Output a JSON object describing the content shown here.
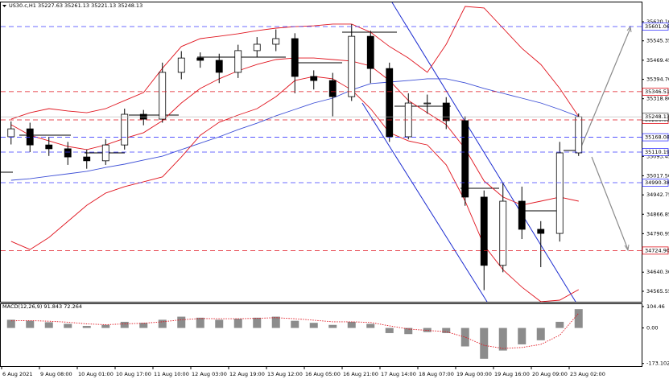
{
  "chart_data": [
    {
      "type": "candlestick",
      "title": "US30.c,H1  35227.63 35261.13 35221.13 35248.13",
      "categories": [
        "6 Aug 2021",
        null,
        "9 Aug 08:00",
        null,
        "10 Aug 01:00",
        null,
        "10 Aug 17:00",
        null,
        "11 Aug 10:00",
        null,
        "12 Aug 03:00",
        null,
        "12 Aug 19:00",
        null,
        "13 Aug 12:00",
        null,
        "16 Aug 05:00",
        null,
        "16 Aug 21:00",
        null,
        "17 Aug 14:00",
        null,
        "18 Aug 07:00",
        null,
        "19 Aug 00:00",
        null,
        "19 Aug 16:00",
        null,
        "20 Aug 09:00",
        null,
        "23 Aug 02:00"
      ],
      "open": [
        35170,
        35201,
        35138,
        35123,
        35091,
        35076,
        35138,
        35258,
        35239,
        35422,
        35478,
        35469,
        35422,
        35507,
        35532,
        35554,
        35406,
        35390,
        35327,
        35563,
        35437,
        35170,
        35302,
        35302,
        35233,
        34934,
        34667,
        34918,
        34808,
        34792,
        35107
      ],
      "high": [
        35230,
        35225,
        35170,
        35150,
        35120,
        35160,
        35280,
        35275,
        35460,
        35505,
        35500,
        35495,
        35530,
        35560,
        35590,
        35575,
        35430,
        35420,
        35610,
        35585,
        35460,
        35340,
        35335,
        35325,
        35250,
        34960,
        34990,
        34975,
        34840,
        35150,
        35261
      ],
      "low": [
        35140,
        35110,
        35095,
        35060,
        35045,
        35060,
        35120,
        35215,
        35225,
        35395,
        35440,
        35380,
        35400,
        35480,
        35505,
        35340,
        35355,
        35250,
        35310,
        35380,
        35150,
        35160,
        35260,
        35200,
        34900,
        34570,
        34640,
        34770,
        34660,
        34760,
        35095
      ],
      "close": [
        35201,
        35138,
        35123,
        35091,
        35076,
        35138,
        35258,
        35239,
        35422,
        35478,
        35469,
        35422,
        35507,
        35532,
        35554,
        35406,
        35390,
        35327,
        35563,
        35437,
        35170,
        35302,
        35302,
        35233,
        34934,
        34667,
        34918,
        34808,
        34792,
        35107,
        35248
      ],
      "series": [
        {
          "color": "#3d4fd6",
          "values": [
            35000,
            35006,
            35016,
            35025,
            35035,
            35050,
            35063,
            35079,
            35094,
            35120,
            35145,
            35170,
            35198,
            35223,
            35252,
            35277,
            35302,
            35321,
            35353,
            35378,
            35384,
            35390,
            35397,
            35397,
            35381,
            35359,
            35340,
            35321,
            35302,
            35277,
            35249
          ]
        },
        {
          "color": "#e0141e",
          "values": [
            35217,
            35176,
            35154,
            35132,
            35120,
            35138,
            35164,
            35186,
            35233,
            35302,
            35359,
            35397,
            35428,
            35453,
            35472,
            35478,
            35478,
            35472,
            35466,
            35447,
            35390,
            35312,
            35264,
            35217,
            35123,
            34997,
            34934,
            34903,
            34918,
            34934,
            34918
          ]
        },
        {
          "color": "#e0141e",
          "values": [
            35239,
            35264,
            35280,
            35271,
            35264,
            35280,
            35312,
            35343,
            35438,
            35523,
            35554,
            35563,
            35573,
            35585,
            35595,
            35601,
            35604,
            35611,
            35611,
            35579,
            35523,
            35478,
            35422,
            35532,
            35680,
            35674,
            35595,
            35516,
            35453,
            35359,
            35249
          ]
        },
        {
          "color": "#e0141e",
          "values": [
            34761,
            34729,
            34776,
            34839,
            34902,
            34950,
            34975,
            34994,
            35013,
            35091,
            35176,
            35227,
            35255,
            35280,
            35327,
            35390,
            35406,
            35397,
            35353,
            35280,
            35186,
            35154,
            35138,
            35060,
            34918,
            34745,
            34650,
            34582,
            34525,
            34531,
            34572
          ]
        }
      ],
      "levels": [
        {
          "value": 35601.06,
          "color": "#3c3cff"
        },
        {
          "value": 35346.51,
          "color": "#e0141e"
        },
        {
          "value": 35236.08,
          "color": "#e0141e"
        },
        {
          "value": 35168.08,
          "color": "#3c3cff"
        },
        {
          "value": 35110.19,
          "color": "#3c3cff"
        },
        {
          "value": 34990.38,
          "color": "#3c3cff"
        },
        {
          "value": 34724.9,
          "label": "34724.90",
          "color": "#e0141e"
        }
      ],
      "last_price": 35248.13,
      "ylim": [
        34524.6,
        35695.6
      ],
      "yticks": [
        {
          "value": 35620.1,
          "label": "35620.10"
        },
        35545.35,
        35469.45,
        {
          "value": 35394.7,
          "label": "35394.70"
        },
        {
          "value": 35318.8,
          "label": "35318.80"
        },
        35093.45,
        {
          "value": 35017.5,
          "label": "35017.50"
        },
        34942.75,
        34866.85,
        34790.95,
        {
          "value": 34640.3,
          "label": "34640.30"
        },
        34565.55
      ]
    },
    {
      "type": "macd",
      "title": "MACD(12,26,9) 91.843 72.264",
      "values": [
        40,
        35,
        28,
        20,
        10,
        15,
        30,
        25,
        40,
        55,
        50,
        40,
        45,
        50,
        55,
        35,
        25,
        15,
        30,
        20,
        -25,
        -30,
        -20,
        -25,
        -90,
        -150,
        -110,
        -80,
        -60,
        30,
        91.843
      ],
      "signal": [
        35,
        36,
        33,
        28,
        20,
        16,
        20,
        23,
        30,
        40,
        46,
        45,
        45,
        47,
        50,
        45,
        38,
        30,
        30,
        27,
        10,
        -5,
        -12,
        -18,
        -45,
        -85,
        -100,
        -95,
        -80,
        -35,
        72.264
      ],
      "color": "#8c8c8c",
      "signal_color": "#e0141e",
      "ylim": [
        -186,
        116
      ],
      "yticks": [
        104.46,
        {
          "value": 0,
          "label": "0.00"
        },
        -173.102
      ]
    }
  ]
}
